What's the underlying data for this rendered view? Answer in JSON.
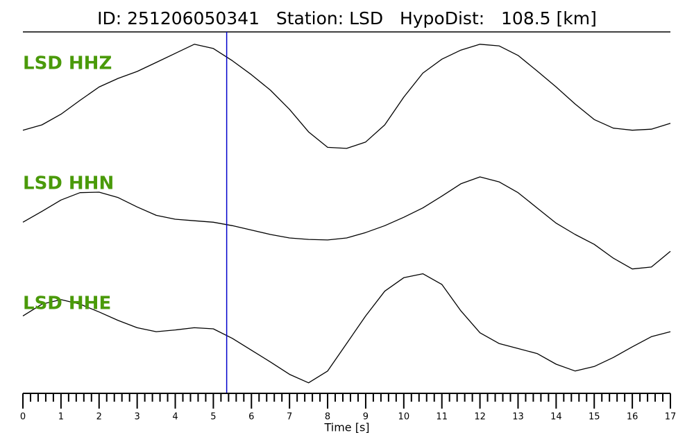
{
  "chart_data": {
    "type": "line",
    "title": "ID: 251206050341   Station: LSD   HypoDist:   108.5 [km]",
    "xlabel": "Time [s]",
    "x": [
      0,
      0.5,
      1,
      1.5,
      2,
      2.5,
      3,
      3.5,
      4,
      4.5,
      5,
      5.5,
      6,
      6.5,
      7,
      7.5,
      8,
      8.5,
      9,
      9.5,
      10,
      10.5,
      11,
      11.5,
      12,
      12.5,
      13,
      13.5,
      14,
      14.5,
      15,
      15.5,
      16,
      16.5,
      17
    ],
    "series": [
      {
        "name": "LSD HHZ",
        "color": "#000000",
        "values": [
          -0.62,
          -0.52,
          -0.32,
          -0.06,
          0.19,
          0.35,
          0.48,
          0.65,
          0.82,
          0.99,
          0.91,
          0.68,
          0.42,
          0.13,
          -0.23,
          -0.65,
          -0.94,
          -0.96,
          -0.84,
          -0.52,
          0,
          0.45,
          0.71,
          0.88,
          0.99,
          0.96,
          0.78,
          0.49,
          0.19,
          -0.13,
          -0.42,
          -0.58,
          -0.62,
          -0.6,
          -0.49
        ]
      },
      {
        "name": "LSD HHN",
        "color": "#000000",
        "values": [
          0.01,
          0.23,
          0.46,
          0.61,
          0.62,
          0.51,
          0.32,
          0.15,
          0.07,
          0.04,
          0.01,
          -0.06,
          -0.15,
          -0.24,
          -0.31,
          -0.34,
          -0.35,
          -0.31,
          -0.2,
          -0.06,
          0.11,
          0.3,
          0.54,
          0.79,
          0.93,
          0.83,
          0.61,
          0.3,
          -0.01,
          -0.24,
          -0.44,
          -0.72,
          -0.94,
          -0.9,
          -0.58
        ]
      },
      {
        "name": "LSD HHE",
        "color": "#000000",
        "values": [
          0.23,
          0.44,
          0.52,
          0.44,
          0.3,
          0.15,
          0.02,
          -0.05,
          -0.02,
          0.02,
          0,
          -0.17,
          -0.38,
          -0.59,
          -0.81,
          -0.96,
          -0.75,
          -0.26,
          0.23,
          0.67,
          0.91,
          0.98,
          0.79,
          0.32,
          -0.07,
          -0.26,
          -0.35,
          -0.44,
          -0.63,
          -0.75,
          -0.67,
          -0.51,
          -0.32,
          -0.14,
          -0.05
        ]
      }
    ],
    "label_color": "#4a9a0a",
    "ylim": [
      -1,
      1
    ],
    "xlim": [
      0,
      17
    ],
    "xticks": [
      0,
      1,
      2,
      3,
      4,
      5,
      6,
      7,
      8,
      9,
      10,
      11,
      12,
      13,
      14,
      15,
      16,
      17
    ],
    "xminorticks": [
      0.2,
      0.4,
      0.6,
      0.8,
      1.2,
      1.4,
      1.6,
      1.8,
      2.2,
      2.4,
      2.6,
      2.8,
      3.2,
      3.4,
      3.6,
      3.8,
      4.2,
      4.4,
      4.6,
      4.8,
      5.2,
      5.4,
      5.6,
      5.8,
      6.2,
      6.4,
      6.6,
      6.8,
      7.2,
      7.4,
      7.6,
      7.8,
      8.2,
      8.4,
      8.6,
      8.8,
      9.2,
      9.4,
      9.6,
      9.8,
      10.2,
      10.4,
      10.6,
      10.8,
      11.2,
      11.4,
      11.6,
      11.8,
      12.2,
      12.4,
      12.6,
      12.8,
      13.2,
      13.4,
      13.6,
      13.8,
      14.2,
      14.4,
      14.6,
      14.8,
      15.2,
      15.4,
      15.6,
      15.8,
      16.2,
      16.4,
      16.6,
      16.8
    ],
    "marker_x": 5.35,
    "marker_color": "#0000cc"
  }
}
